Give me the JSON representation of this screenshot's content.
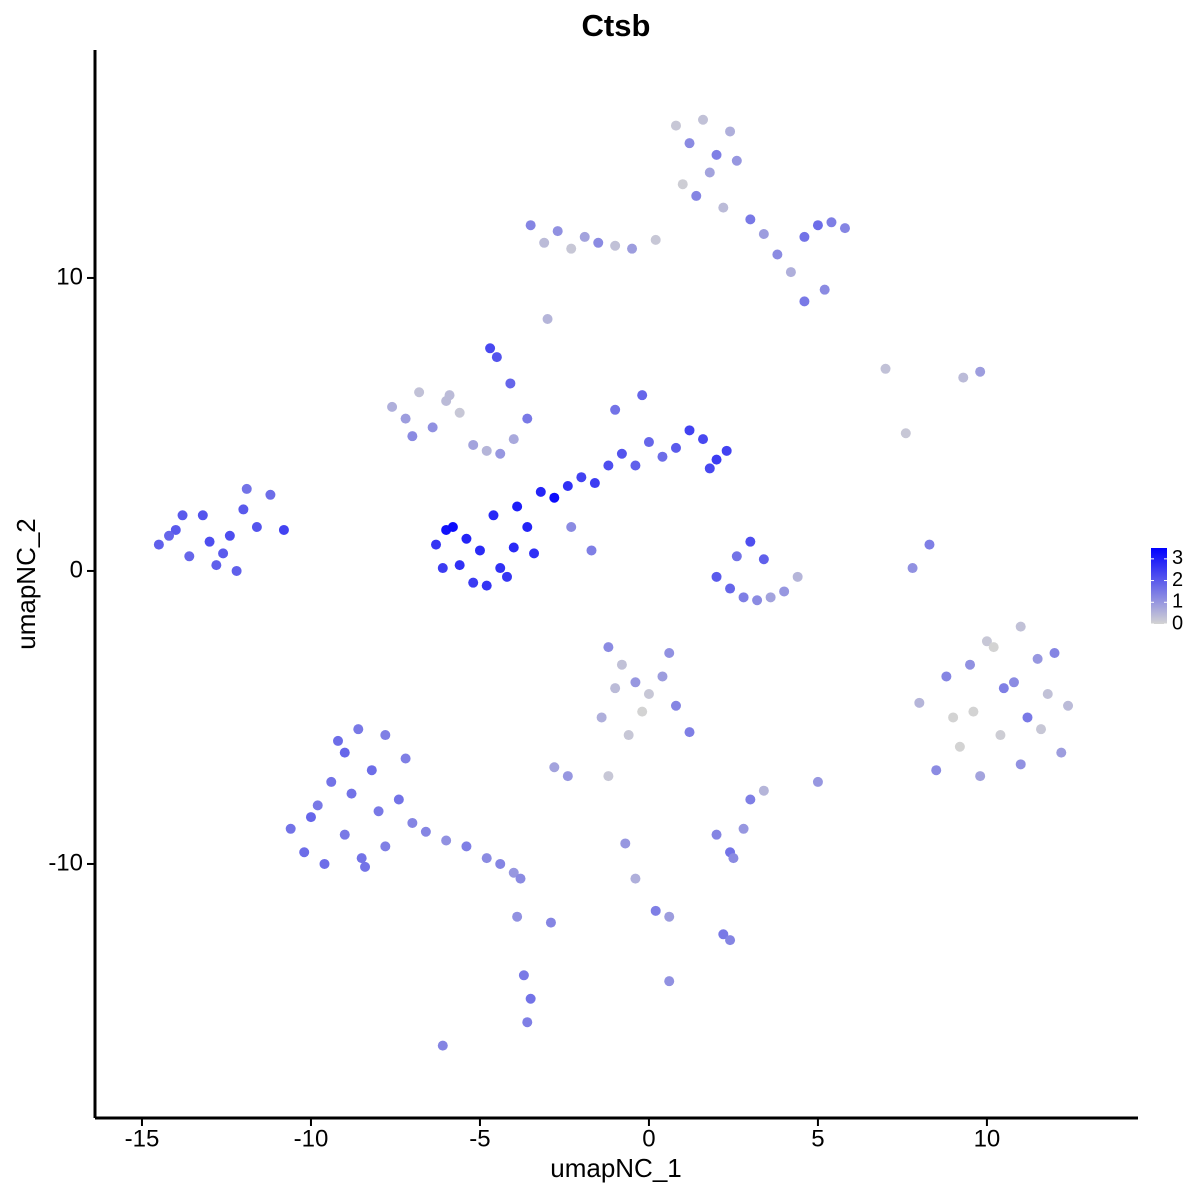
{
  "chart_data": {
    "type": "scatter",
    "title": "Ctsb",
    "x_label": "umapNC_1",
    "y_label": "umapNC_2",
    "xlim": [
      -16.39,
      14.47
    ],
    "ylim": [
      -18.67,
      17.78
    ],
    "xticks": [
      -15,
      -10,
      -5,
      0,
      5,
      10
    ],
    "yticks": [
      -10,
      0,
      10
    ],
    "color_low": "#d3d3d3",
    "color_high": "#0000ff",
    "colorbar_lim": [
      0,
      3.5
    ],
    "colorbar_ticks": [
      0,
      1,
      2,
      3
    ],
    "x": [
      -14.5,
      -14.0,
      -13.6,
      -13.2,
      -12.8,
      -12.4,
      -12.0,
      -11.6,
      -11.2,
      -10.8,
      -13.8,
      -13.0,
      -12.2,
      -11.9,
      -12.6,
      -14.2,
      -6.3,
      -6.0,
      -5.6,
      -5.2,
      -4.8,
      -4.4,
      -4.0,
      -3.6,
      -5.8,
      -5.0,
      -4.2,
      -3.4,
      -5.4,
      -4.6,
      -6.1,
      -3.9,
      -3.2,
      -2.8,
      -2.4,
      -2.0,
      -1.6,
      -1.2,
      -0.8,
      -0.4,
      0.0,
      0.4,
      0.8,
      1.2,
      1.6,
      2.0,
      2.3,
      1.8,
      -1.0,
      -0.2,
      -7.6,
      -7.2,
      -6.8,
      -6.4,
      -6.0,
      -5.6,
      -5.2,
      -4.8,
      -4.4,
      -4.0,
      -7.0,
      -5.9,
      -4.7,
      -4.5,
      -4.1,
      -3.6,
      -2.3,
      -1.7,
      0.8,
      1.2,
      1.6,
      2.0,
      2.4,
      2.6,
      1.0,
      1.4,
      1.8,
      2.2,
      3.0,
      3.4,
      3.8,
      4.2,
      4.6,
      5.0,
      5.4,
      5.8,
      4.6,
      5.2,
      -3.5,
      -3.1,
      -2.7,
      -2.3,
      -1.9,
      -1.5,
      -1.0,
      -0.5,
      0.2,
      -3.0,
      8.0,
      8.5,
      9.0,
      9.5,
      10.0,
      10.5,
      11.0,
      11.5,
      12.0,
      12.4,
      9.2,
      9.8,
      10.4,
      11.0,
      11.6,
      12.2,
      8.8,
      9.6,
      10.8,
      11.8,
      10.2,
      11.2,
      -10.6,
      -10.2,
      -9.8,
      -9.4,
      -9.0,
      -8.6,
      -8.2,
      -7.8,
      -7.4,
      -7.0,
      -9.6,
      -9.0,
      -8.4,
      -7.8,
      -10.0,
      -8.8,
      -8.0,
      -7.2,
      -9.2,
      -8.5,
      -6.6,
      -6.0,
      -5.4,
      -4.8,
      -4.4,
      -4.0,
      -3.8,
      -3.9,
      -3.5,
      -3.6,
      -6.1,
      -3.7,
      2.0,
      2.4,
      2.8,
      3.2,
      3.6,
      4.0,
      4.4,
      3.0,
      2.6,
      3.4,
      -1.2,
      -0.8,
      -0.4,
      0.0,
      0.4,
      0.8,
      1.2,
      -1.0,
      -0.2,
      0.6,
      -1.4,
      -0.6,
      -2.8,
      -2.4,
      -1.2,
      -2.9,
      -0.7,
      -0.4,
      0.2,
      0.6,
      2.2,
      2.4,
      3.4,
      5.0,
      8.3,
      7.8,
      9.8,
      7.0,
      2.0,
      2.4,
      2.8,
      3.0,
      2.5,
      7.6,
      9.3,
      0.6
    ],
    "y": [
      0.9,
      1.4,
      0.5,
      1.9,
      0.2,
      1.2,
      2.1,
      1.5,
      2.6,
      1.4,
      1.9,
      1.0,
      0.0,
      2.8,
      0.6,
      1.2,
      0.9,
      1.4,
      0.2,
      -0.4,
      -0.5,
      0.1,
      0.8,
      1.5,
      1.5,
      0.7,
      -0.2,
      0.6,
      1.1,
      1.9,
      0.1,
      2.2,
      2.7,
      2.5,
      2.9,
      3.2,
      3.0,
      3.6,
      4.0,
      3.6,
      4.4,
      3.9,
      4.2,
      4.8,
      4.5,
      3.8,
      4.1,
      3.5,
      5.5,
      6.0,
      5.6,
      5.2,
      6.1,
      4.9,
      5.8,
      5.4,
      4.3,
      4.1,
      4.0,
      4.5,
      4.6,
      6.0,
      7.6,
      7.3,
      6.4,
      5.2,
      1.5,
      0.7,
      15.2,
      14.6,
      15.4,
      14.2,
      15.0,
      14.0,
      13.2,
      12.8,
      13.6,
      12.4,
      12.0,
      11.5,
      10.8,
      10.2,
      11.4,
      11.8,
      11.9,
      11.7,
      9.2,
      9.6,
      11.8,
      11.2,
      11.6,
      11.0,
      11.4,
      11.2,
      11.1,
      11.0,
      11.3,
      8.6,
      -4.5,
      -6.8,
      -5.0,
      -3.2,
      -2.4,
      -4.0,
      -1.9,
      -3.0,
      -2.8,
      -4.6,
      -6.0,
      -7.0,
      -5.6,
      -6.6,
      -5.4,
      -6.2,
      -3.6,
      -4.8,
      -3.8,
      -4.2,
      -2.6,
      -5.0,
      -8.8,
      -9.6,
      -8.0,
      -7.2,
      -6.2,
      -5.4,
      -6.8,
      -5.6,
      -7.8,
      -8.6,
      -10.0,
      -9.0,
      -10.1,
      -9.4,
      -8.4,
      -7.6,
      -8.2,
      -6.4,
      -5.8,
      -9.8,
      -8.9,
      -9.2,
      -9.4,
      -9.8,
      -10.0,
      -10.3,
      -10.5,
      -11.8,
      -14.6,
      -15.4,
      -16.2,
      -13.8,
      -0.2,
      -0.6,
      -0.9,
      -1.0,
      -0.9,
      -0.7,
      -0.2,
      1.0,
      0.5,
      0.4,
      -2.6,
      -3.2,
      -3.8,
      -4.2,
      -3.6,
      -4.6,
      -5.5,
      -4.0,
      -4.8,
      -2.8,
      -5.0,
      -5.6,
      -6.7,
      -7.0,
      -7.0,
      -12.0,
      -9.3,
      -10.5,
      -11.6,
      -11.8,
      -12.4,
      -12.6,
      -7.5,
      -7.2,
      0.9,
      0.1,
      6.8,
      6.9,
      -9.0,
      -9.6,
      -8.8,
      -7.8,
      -9.8,
      4.7,
      6.6,
      -14.0
    ],
    "values": [
      1.9,
      2.0,
      1.8,
      2.1,
      1.9,
      2.2,
      2.0,
      2.1,
      1.7,
      2.4,
      2.0,
      2.2,
      1.9,
      1.6,
      2.0,
      1.8,
      2.6,
      3.2,
      2.7,
      2.5,
      2.6,
      2.7,
      2.8,
      2.9,
      3.3,
      2.8,
      2.6,
      2.7,
      2.9,
      2.8,
      2.5,
      3.0,
      2.9,
      3.3,
      2.7,
      2.4,
      2.5,
      2.2,
      2.1,
      1.9,
      1.8,
      1.7,
      2.0,
      2.4,
      2.3,
      2.5,
      2.4,
      2.3,
      1.6,
      1.8,
      0.6,
      0.9,
      0.3,
      1.1,
      0.4,
      0.2,
      0.8,
      0.5,
      1.0,
      0.7,
      1.2,
      0.4,
      2.3,
      2.1,
      1.8,
      1.5,
      1.2,
      1.4,
      0.2,
      1.2,
      0.3,
      1.4,
      0.6,
      1.0,
      0.1,
      1.3,
      0.8,
      0.4,
      1.5,
      0.9,
      1.2,
      0.6,
      1.6,
      1.7,
      1.4,
      1.3,
      1.5,
      1.2,
      1.3,
      0.4,
      1.1,
      0.2,
      0.8,
      1.2,
      0.3,
      0.9,
      0.2,
      0.5,
      0.5,
      1.2,
      0.0,
      1.1,
      0.2,
      1.4,
      0.3,
      1.0,
      1.3,
      0.4,
      0.0,
      0.8,
      0.1,
      1.1,
      0.2,
      0.9,
      1.3,
      0.0,
      1.2,
      0.3,
      0.0,
      1.5,
      1.6,
      1.7,
      1.5,
      1.6,
      1.8,
      1.5,
      1.7,
      1.4,
      1.6,
      1.3,
      1.7,
      1.5,
      1.6,
      1.4,
      1.8,
      1.6,
      1.5,
      1.4,
      1.7,
      1.6,
      1.3,
      1.1,
      1.4,
      1.2,
      1.3,
      1.0,
      1.2,
      1.1,
      1.6,
      1.4,
      1.3,
      1.5,
      2.0,
      1.8,
      1.4,
      1.2,
      0.8,
      1.0,
      0.5,
      2.2,
      1.6,
      1.9,
      1.2,
      0.3,
      1.0,
      0.2,
      0.9,
      1.3,
      1.4,
      0.4,
      0.0,
      1.1,
      0.6,
      0.2,
      0.8,
      1.0,
      0.2,
      1.3,
      1.0,
      0.6,
      1.4,
      0.9,
      1.5,
      1.3,
      0.5,
      1.0,
      1.4,
      1.1,
      0.9,
      0.3,
      1.3,
      1.6,
      1.0,
      1.4,
      1.2,
      0.2,
      0.4,
      1.1
    ]
  }
}
